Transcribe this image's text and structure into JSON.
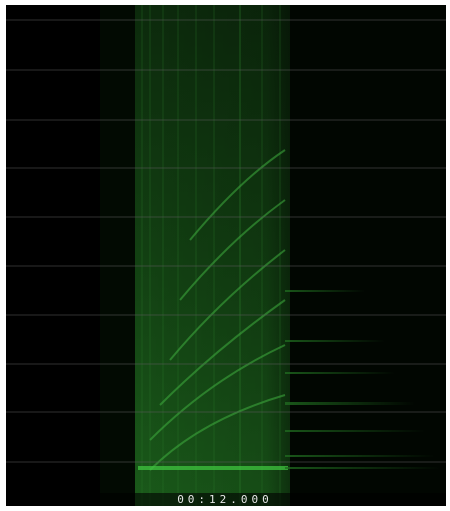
{
  "timestamp": "00:12.000"
}
